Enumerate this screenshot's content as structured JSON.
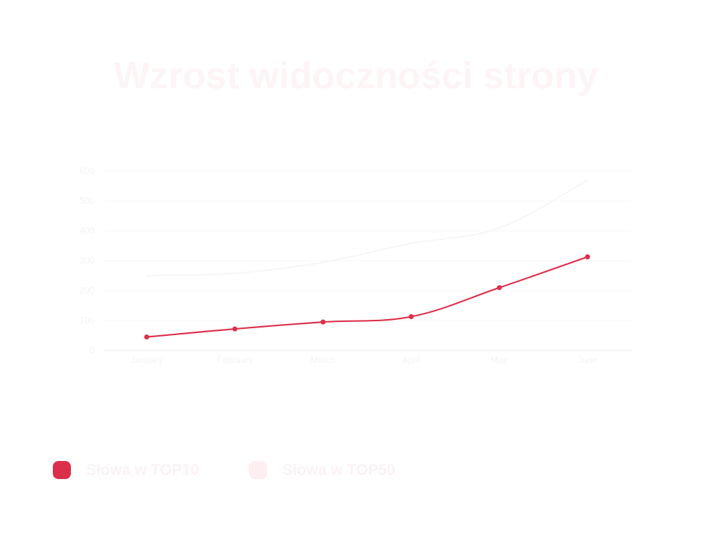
{
  "chart_data": {
    "type": "line",
    "title": "Wzrost widoczności strony",
    "categories": [
      "January",
      "February",
      "March",
      "April",
      "May",
      "June"
    ],
    "y_ticks": [
      "0",
      "100",
      "200",
      "300",
      "400",
      "500",
      "600"
    ],
    "ylim": [
      0,
      600
    ],
    "grid": true,
    "legend_position": "bottom-left",
    "series": [
      {
        "name": "Słowa w TOP10",
        "color": "#dc2f4b",
        "values": [
          45,
          72,
          95,
          113,
          210,
          313
        ]
      },
      {
        "name": "Słowa w TOP50",
        "color": "#f6f6f6",
        "values": [
          250,
          258,
          295,
          358,
          410,
          570
        ]
      }
    ]
  },
  "legend": {
    "items": [
      {
        "label": "Słowa w TOP10",
        "color": "#dc2f4b"
      },
      {
        "label": "Słowa w TOP50",
        "color": "#fdeef1"
      }
    ]
  }
}
